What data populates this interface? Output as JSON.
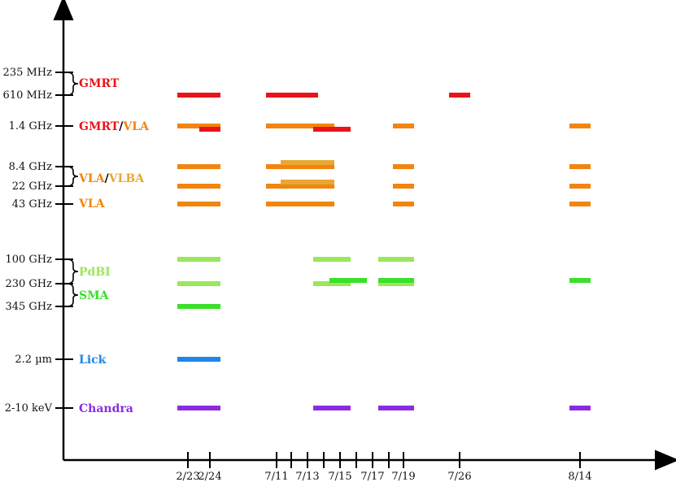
{
  "chart_data": {
    "type": "timeline",
    "title": "",
    "xlabel": "",
    "ylabel": "",
    "colors": {
      "gmrt": "#e8141a",
      "vla": "#f2840f",
      "vlba": "#e9a830",
      "pdbi": "#9be65a",
      "sma": "#3ae02a",
      "lick": "#1f86e8",
      "chandra": "#8a2be2",
      "axis": "#000000"
    },
    "bands": [
      {
        "key": "235mhz",
        "label": "235 MHz"
      },
      {
        "key": "610mhz",
        "label": "610 MHz"
      },
      {
        "key": "1.4ghz",
        "label": "1.4 GHz"
      },
      {
        "key": "8.4ghz",
        "label": "8.4 GHz"
      },
      {
        "key": "22ghz",
        "label": "22 GHz"
      },
      {
        "key": "43ghz",
        "label": "43 GHz"
      },
      {
        "key": "100ghz",
        "label": "100 GHz"
      },
      {
        "key": "230ghz",
        "label": "230 GHz"
      },
      {
        "key": "345ghz",
        "label": "345 GHz"
      },
      {
        "key": "2.2um",
        "label": "2.2 µm"
      },
      {
        "key": "2-10kev",
        "label": "2-10 keV"
      }
    ],
    "facilities": [
      {
        "key": "gmrt1",
        "parts": [
          {
            "text": "GMRT",
            "color": "gmrt"
          }
        ]
      },
      {
        "key": "gmrtvla",
        "parts": [
          {
            "text": "GMRT",
            "color": "gmrt"
          },
          {
            "text": "/",
            "color": "axis"
          },
          {
            "text": "VLA",
            "color": "vla"
          }
        ]
      },
      {
        "key": "vlavlba",
        "parts": [
          {
            "text": "VLA",
            "color": "vla"
          },
          {
            "text": "/",
            "color": "axis"
          },
          {
            "text": "VLBA",
            "color": "vlba"
          }
        ]
      },
      {
        "key": "vla43",
        "parts": [
          {
            "text": "VLA",
            "color": "vla"
          }
        ]
      },
      {
        "key": "pdbi",
        "parts": [
          {
            "text": "PdBI",
            "color": "pdbi"
          }
        ]
      },
      {
        "key": "sma",
        "parts": [
          {
            "text": "SMA",
            "color": "sma"
          }
        ]
      },
      {
        "key": "lick",
        "parts": [
          {
            "text": "Lick",
            "color": "lick"
          }
        ]
      },
      {
        "key": "chandra",
        "parts": [
          {
            "text": "Chandra",
            "color": "chandra"
          }
        ]
      }
    ],
    "x_ticks": [
      "2/23",
      "2/24",
      "7/11",
      "7/12",
      "7/13",
      "7/14",
      "7/15",
      "7/16",
      "7/17",
      "7/18",
      "7/19",
      "7/26",
      "8/14"
    ],
    "x_tick_labels": [
      "2/23",
      "2/24",
      "7/11",
      "7/13",
      "7/15",
      "7/17",
      "7/19",
      "7/26",
      "8/14"
    ],
    "observations": [
      {
        "band": "610mhz",
        "color": "gmrt",
        "start": "2/23",
        "end": "2/24"
      },
      {
        "band": "610mhz",
        "color": "gmrt",
        "start": "7/11",
        "end": "7/13"
      },
      {
        "band": "610mhz",
        "color": "gmrt",
        "start": "7/26",
        "end": "7/26"
      },
      {
        "band": "1.4ghz",
        "color": "vla",
        "start": "2/23",
        "end": "2/24"
      },
      {
        "band": "1.4ghz",
        "color": "gmrt",
        "start": "2/24",
        "end": "2/24"
      },
      {
        "band": "1.4ghz",
        "color": "vla",
        "start": "7/11",
        "end": "7/14"
      },
      {
        "band": "1.4ghz",
        "color": "gmrt",
        "start": "7/14",
        "end": "7/15"
      },
      {
        "band": "1.4ghz",
        "color": "vla",
        "start": "7/19",
        "end": "7/19"
      },
      {
        "band": "1.4ghz",
        "color": "vla",
        "start": "8/14",
        "end": "8/14"
      },
      {
        "band": "8.4ghz",
        "color": "vla",
        "start": "2/23",
        "end": "2/24"
      },
      {
        "band": "8.4ghz",
        "color": "vla",
        "start": "7/11",
        "end": "7/14"
      },
      {
        "band": "8.4ghz",
        "color": "vlba",
        "start": "7/12",
        "end": "7/14"
      },
      {
        "band": "8.4ghz",
        "color": "vla",
        "start": "7/19",
        "end": "7/19"
      },
      {
        "band": "8.4ghz",
        "color": "vla",
        "start": "8/14",
        "end": "8/14"
      },
      {
        "band": "22ghz",
        "color": "vla",
        "start": "2/23",
        "end": "2/24"
      },
      {
        "band": "22ghz",
        "color": "vla",
        "start": "7/11",
        "end": "7/14"
      },
      {
        "band": "22ghz",
        "color": "vlba",
        "start": "7/12",
        "end": "7/14"
      },
      {
        "band": "22ghz",
        "color": "vla",
        "start": "7/19",
        "end": "7/19"
      },
      {
        "band": "22ghz",
        "color": "vla",
        "start": "8/14",
        "end": "8/14"
      },
      {
        "band": "43ghz",
        "color": "vla",
        "start": "2/23",
        "end": "2/24"
      },
      {
        "band": "43ghz",
        "color": "vla",
        "start": "7/11",
        "end": "7/14"
      },
      {
        "band": "43ghz",
        "color": "vla",
        "start": "7/19",
        "end": "7/19"
      },
      {
        "band": "43ghz",
        "color": "vla",
        "start": "8/14",
        "end": "8/14"
      },
      {
        "band": "100ghz",
        "color": "pdbi",
        "start": "2/23",
        "end": "2/24"
      },
      {
        "band": "100ghz",
        "color": "pdbi",
        "start": "7/14",
        "end": "7/15"
      },
      {
        "band": "100ghz",
        "color": "pdbi",
        "start": "7/18",
        "end": "7/19"
      },
      {
        "band": "230ghz",
        "color": "pdbi",
        "start": "2/23",
        "end": "2/24"
      },
      {
        "band": "230ghz",
        "color": "pdbi",
        "start": "7/14",
        "end": "7/15"
      },
      {
        "band": "230ghz",
        "color": "sma",
        "start": "7/15",
        "end": "7/16"
      },
      {
        "band": "230ghz",
        "color": "pdbi",
        "start": "7/18",
        "end": "7/19"
      },
      {
        "band": "230ghz",
        "color": "sma",
        "start": "7/18",
        "end": "7/19"
      },
      {
        "band": "230ghz",
        "color": "sma",
        "start": "8/14",
        "end": "8/14"
      },
      {
        "band": "345ghz",
        "color": "sma",
        "start": "2/23",
        "end": "2/24"
      },
      {
        "band": "2.2um",
        "color": "lick",
        "start": "2/23",
        "end": "2/24"
      },
      {
        "band": "2-10kev",
        "color": "chandra",
        "start": "2/23",
        "end": "2/24"
      },
      {
        "band": "2-10kev",
        "color": "chandra",
        "start": "7/14",
        "end": "7/14"
      },
      {
        "band": "2-10kev",
        "color": "chandra",
        "start": "7/15",
        "end": "7/15"
      },
      {
        "band": "2-10kev",
        "color": "chandra",
        "start": "7/18",
        "end": "7/19"
      },
      {
        "band": "2-10kev",
        "color": "chandra",
        "start": "8/14",
        "end": "8/14"
      }
    ],
    "grid": false,
    "legend": "none"
  }
}
